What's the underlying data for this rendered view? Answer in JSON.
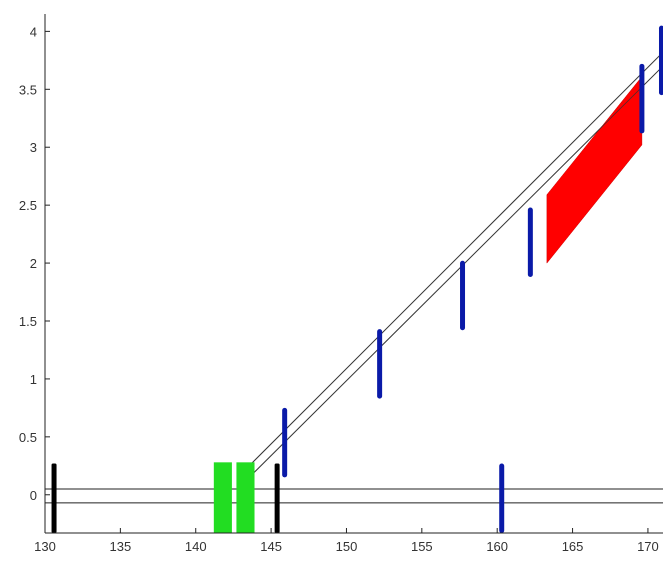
{
  "chart_data": {
    "type": "diagram",
    "title": "",
    "xlabel": "",
    "ylabel": "",
    "xlim": [
      130,
      171
    ],
    "ylim": [
      -0.33,
      4.15
    ],
    "grid": false,
    "x_ticks": [
      130,
      135,
      140,
      145,
      150,
      155,
      160,
      165,
      170
    ],
    "x_tick_labels": [
      "130",
      "135",
      "140",
      "145",
      "150",
      "155",
      "160",
      "165",
      "170"
    ],
    "y_ticks": [
      0,
      0.5,
      1,
      1.5,
      2,
      2.5,
      3,
      3.5,
      4
    ],
    "y_tick_labels": [
      "0",
      "0.5",
      "1",
      "1.5",
      "2",
      "2.5",
      "3",
      "3.5",
      "4"
    ],
    "horizontal_lines": [
      {
        "y": 0.05,
        "x0": 130,
        "x1": 171
      },
      {
        "y": -0.07,
        "x0": 130,
        "x1": 171
      }
    ],
    "beam_lines": [
      {
        "points": [
          [
            143.7,
            0.27
          ],
          [
            171.0,
            3.82
          ]
        ]
      },
      {
        "points": [
          [
            143.7,
            0.17
          ],
          [
            171.0,
            3.7
          ]
        ]
      }
    ],
    "black_markers": [
      {
        "x": 130.6,
        "y0": -0.33,
        "y1": 0.27
      },
      {
        "x": 145.4,
        "y0": -0.33,
        "y1": 0.27
      }
    ],
    "blue_markers": [
      {
        "x": 145.9,
        "y0": 0.15,
        "y1": 0.75
      },
      {
        "x": 152.2,
        "y0": 0.83,
        "y1": 1.43
      },
      {
        "x": 157.7,
        "y0": 1.42,
        "y1": 2.02
      },
      {
        "x": 162.2,
        "y0": 1.88,
        "y1": 2.48
      },
      {
        "x": 169.6,
        "y0": 3.12,
        "y1": 3.72
      },
      {
        "x": 170.9,
        "y0": 3.45,
        "y1": 4.05
      },
      {
        "x": 160.3,
        "y0": -0.33,
        "y1": 0.27
      }
    ],
    "green_blocks": [
      {
        "x0": 141.2,
        "x1": 142.4,
        "y0": -0.33,
        "y1": 0.28
      },
      {
        "x0": 142.7,
        "x1": 143.9,
        "y0": -0.33,
        "y1": 0.28
      }
    ],
    "red_parallelogram": {
      "points": [
        [
          163.3,
          2.59
        ],
        [
          169.6,
          3.61
        ],
        [
          169.6,
          3.02
        ],
        [
          163.3,
          2.0
        ]
      ]
    },
    "colors": {
      "blue": "#0a1aa8",
      "black": "#000000",
      "green": "#22dd22",
      "red": "#ff0000",
      "beam": "#555555",
      "axis": "#222222"
    }
  }
}
